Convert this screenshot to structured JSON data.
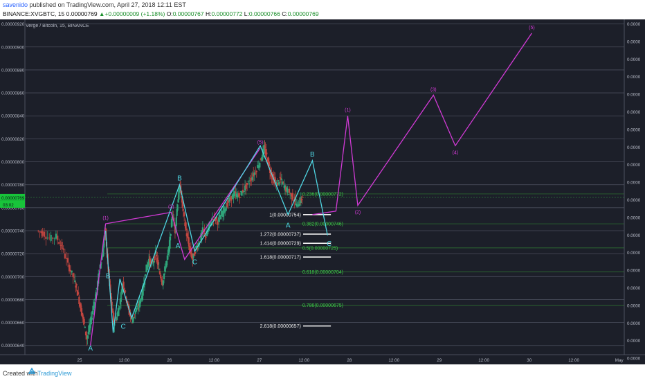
{
  "header": {
    "author": "savenido",
    "published_text": " published on TradingView.com, April 27, 2018 12:11 EST",
    "ohlc": {
      "symbol": "BINANCE:XVGBTC, 15",
      "last": "0.00000769",
      "change": "+0.00000009 (+1.18%)",
      "o_label": "O:",
      "o": "0.00000767",
      "h_label": "H:",
      "h": "0.00000772",
      "l_label": "L:",
      "l": "0.00000766",
      "c_label": "C:",
      "c": "0.00000769"
    }
  },
  "footer": {
    "created_with": "Created with",
    "brand": "TradingView"
  },
  "chart_data": {
    "type": "candlestick",
    "title": "Verge / Bitcoin, 15, BINANCE",
    "y_ticks": [
      "0.00000920",
      "0.00000900",
      "0.00000880",
      "0.00000860",
      "0.00000840",
      "0.00000820",
      "0.00000800",
      "0.00000780",
      "0.00000760",
      "0.00000740",
      "0.00000720",
      "0.00000700",
      "0.00000680",
      "0.00000660",
      "0.00000640"
    ],
    "right_ticks": [
      "0.0000",
      "0.0000",
      "0.0000",
      "0.0000",
      "0.0000",
      "0.0000",
      "0.0000",
      "0.0000",
      "0.0000",
      "0.0000",
      "0.0000",
      "0.0000",
      "0.0000",
      "0.0000",
      "0.0000",
      "0.0000",
      "0.0000",
      "0.0000",
      "0.0000",
      "0.0000"
    ],
    "ylim": [
      6.32e-06,
      9.24e-06
    ],
    "x_ticks": [
      {
        "label": "25",
        "t": 0.65
      },
      {
        "label": "12:00",
        "t": 1.18
      },
      {
        "label": "26",
        "t": 1.72
      },
      {
        "label": "12:00",
        "t": 2.25
      },
      {
        "label": "27",
        "t": 2.79
      },
      {
        "label": "12:00",
        "t": 3.32
      },
      {
        "label": "28",
        "t": 3.86
      },
      {
        "label": "12:00",
        "t": 4.39
      },
      {
        "label": "29",
        "t": 4.93
      },
      {
        "label": "12:00",
        "t": 5.46
      },
      {
        "label": "30",
        "t": 6.0
      },
      {
        "label": "12:00",
        "t": 6.53
      },
      {
        "label": "May",
        "t": 7.07
      }
    ],
    "price_badges": [
      "0.00000769",
      "03:02"
    ],
    "price_path": [
      [
        0.15,
        7.4
      ],
      [
        0.22,
        7.38
      ],
      [
        0.3,
        7.33
      ],
      [
        0.38,
        7.35
      ],
      [
        0.45,
        7.25
      ],
      [
        0.52,
        7.1
      ],
      [
        0.58,
        7.0
      ],
      [
        0.62,
        6.9
      ],
      [
        0.66,
        6.75
      ],
      [
        0.7,
        6.62
      ],
      [
        0.74,
        6.46
      ],
      [
        0.78,
        6.58
      ],
      [
        0.82,
        6.75
      ],
      [
        0.86,
        6.9
      ],
      [
        0.9,
        7.1
      ],
      [
        0.93,
        7.2
      ],
      [
        0.96,
        7.4
      ],
      [
        0.99,
        7.1
      ],
      [
        1.02,
        6.85
      ],
      [
        1.06,
        6.6
      ],
      [
        1.1,
        6.65
      ],
      [
        1.14,
        6.8
      ],
      [
        1.17,
        6.95
      ],
      [
        1.2,
        6.85
      ],
      [
        1.24,
        6.7
      ],
      [
        1.28,
        6.62
      ],
      [
        1.32,
        6.7
      ],
      [
        1.36,
        6.75
      ],
      [
        1.4,
        6.85
      ],
      [
        1.44,
        7.05
      ],
      [
        1.48,
        7.15
      ],
      [
        1.52,
        7.1
      ],
      [
        1.56,
        7.2
      ],
      [
        1.6,
        7.05
      ],
      [
        1.64,
        6.95
      ],
      [
        1.68,
        7.1
      ],
      [
        1.72,
        7.25
      ],
      [
        1.76,
        7.55
      ],
      [
        1.79,
        7.4
      ],
      [
        1.82,
        7.65
      ],
      [
        1.85,
        7.8
      ],
      [
        1.88,
        7.6
      ],
      [
        1.92,
        7.4
      ],
      [
        1.96,
        7.25
      ],
      [
        2.0,
        7.15
      ],
      [
        2.04,
        7.25
      ],
      [
        2.08,
        7.3
      ],
      [
        2.12,
        7.4
      ],
      [
        2.16,
        7.35
      ],
      [
        2.2,
        7.45
      ],
      [
        2.25,
        7.52
      ],
      [
        2.3,
        7.48
      ],
      [
        2.35,
        7.55
      ],
      [
        2.4,
        7.62
      ],
      [
        2.45,
        7.68
      ],
      [
        2.5,
        7.72
      ],
      [
        2.55,
        7.7
      ],
      [
        2.6,
        7.75
      ],
      [
        2.65,
        7.8
      ],
      [
        2.7,
        7.86
      ],
      [
        2.75,
        7.92
      ],
      [
        2.8,
        8.0
      ],
      [
        2.85,
        8.12
      ],
      [
        2.88,
        8.05
      ],
      [
        2.92,
        7.92
      ],
      [
        2.96,
        7.85
      ],
      [
        3.0,
        7.8
      ],
      [
        3.04,
        7.85
      ],
      [
        3.08,
        7.8
      ],
      [
        3.12,
        7.75
      ],
      [
        3.16,
        7.72
      ],
      [
        3.2,
        7.68
      ],
      [
        3.24,
        7.62
      ],
      [
        3.28,
        7.66
      ],
      [
        3.31,
        7.69
      ]
    ],
    "wave_pink": [
      [
        0.78,
        6.4
      ],
      [
        0.96,
        7.46
      ],
      [
        1.74,
        7.56
      ],
      [
        1.9,
        7.15
      ],
      [
        2.8,
        8.12
      ]
    ],
    "wave_projection": [
      [
        3.42,
        7.54
      ],
      [
        3.7,
        7.57
      ],
      [
        3.84,
        8.4
      ],
      [
        3.96,
        7.62
      ],
      [
        4.86,
        8.58
      ],
      [
        5.12,
        8.14
      ],
      [
        6.03,
        9.12
      ]
    ],
    "wave_cyan": [
      [
        0.96,
        7.4
      ],
      [
        1.05,
        6.51
      ],
      [
        1.13,
        6.98
      ],
      [
        1.27,
        6.64
      ],
      [
        1.84,
        7.8
      ],
      [
        2.02,
        7.22
      ],
      [
        2.8,
        8.14
      ],
      [
        3.13,
        7.54
      ],
      [
        3.42,
        8.01
      ],
      [
        3.6,
        7.36
      ]
    ],
    "fib_extension": [
      {
        "label": "1(0.00000754)",
        "y": 7.54
      },
      {
        "label": "1.272(0.00000737)",
        "y": 7.37
      },
      {
        "label": "1.414(0.00000729)",
        "y": 7.29
      },
      {
        "label": "1.618(0.00000717)",
        "y": 7.17
      },
      {
        "label": "2.618(0.00000657)",
        "y": 6.57
      }
    ],
    "fib_retracement": [
      {
        "label": "0.236(0.00000772)",
        "y": 7.72
      },
      {
        "label": "0.382(0.00000746)",
        "y": 7.46
      },
      {
        "label": "0.5(0.00000725)",
        "y": 7.25
      },
      {
        "label": "0.618(0.00000704)",
        "y": 7.04
      },
      {
        "label": "0.786(0.00000675)",
        "y": 6.75
      }
    ],
    "wave_labels": [
      {
        "text": "(1)",
        "t": 0.96,
        "y": 7.46,
        "color": "pink",
        "pos": "above"
      },
      {
        "text": "(3)",
        "t": 1.74,
        "y": 7.56,
        "color": "pink",
        "pos": "above"
      },
      {
        "text": "(5)",
        "t": 2.8,
        "y": 8.12,
        "color": "pink",
        "pos": "above"
      },
      {
        "text": "(2)",
        "t": 3.96,
        "y": 7.62,
        "color": "pink",
        "pos": "below"
      },
      {
        "text": "(1)",
        "t": 3.84,
        "y": 8.4,
        "color": "pink",
        "pos": "above"
      },
      {
        "text": "(3)",
        "t": 4.86,
        "y": 8.58,
        "color": "pink",
        "pos": "above"
      },
      {
        "text": "(4)",
        "t": 5.12,
        "y": 8.14,
        "color": "pink",
        "pos": "below"
      },
      {
        "text": "(5)",
        "t": 6.03,
        "y": 9.12,
        "color": "pink",
        "pos": "above"
      },
      {
        "text": "A",
        "t": 0.78,
        "y": 6.43,
        "color": "cyan",
        "pos": "below"
      },
      {
        "text": "B",
        "t": 0.99,
        "y": 6.95,
        "color": "cyan",
        "pos": "above"
      },
      {
        "text": "C",
        "t": 1.17,
        "y": 6.62,
        "color": "cyan",
        "pos": "below"
      },
      {
        "text": "A",
        "t": 1.82,
        "y": 7.32,
        "color": "cyan",
        "pos": "below"
      },
      {
        "text": "B",
        "t": 1.84,
        "y": 7.8,
        "color": "cyan",
        "pos": "above"
      },
      {
        "text": "C",
        "t": 2.02,
        "y": 7.18,
        "color": "cyan",
        "pos": "below"
      },
      {
        "text": "A",
        "t": 3.13,
        "y": 7.5,
        "color": "cyan",
        "pos": "below"
      },
      {
        "text": "B",
        "t": 3.42,
        "y": 8.01,
        "color": "cyan",
        "pos": "above"
      },
      {
        "text": "C",
        "t": 3.62,
        "y": 7.34,
        "color": "cyan",
        "pos": "below"
      }
    ]
  }
}
